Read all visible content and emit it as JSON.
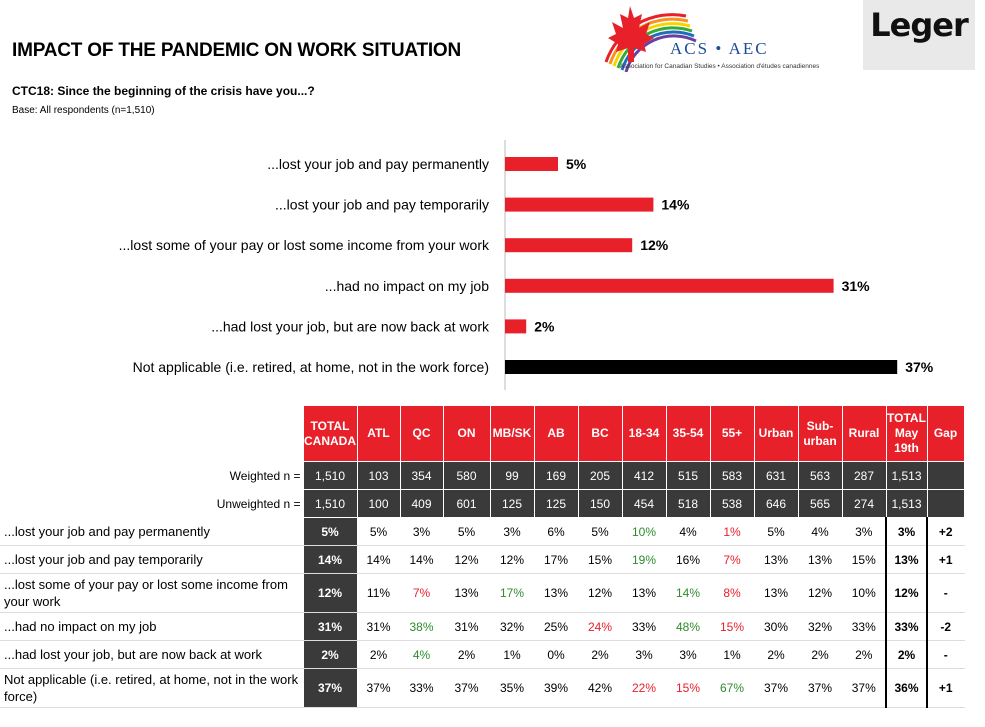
{
  "title": "IMPACT OF THE PANDEMIC ON WORK SITUATION",
  "question": "CTC18: Since the beginning of the crisis have you...?",
  "base": "Base: All respondents (n=1,510)",
  "logos": {
    "acs_text": "ACS • AEC",
    "acs_sub": "Association for Canadian Studies • Association d'études canadiennes",
    "leger": "Leger"
  },
  "colors": {
    "red": "#e8202a",
    "black": "#000000",
    "dark_cell": "#3a3a3a",
    "green": "#2e8b2e"
  },
  "chart_data": {
    "type": "bar",
    "orientation": "horizontal",
    "categories": [
      "...lost your job and pay permanently",
      "...lost your job and pay temporarily",
      "...lost some of your pay or lost some income from your work",
      "...had no impact on my job",
      "...had lost your job, but are now back at work",
      "Not applicable (i.e. retired, at home, not in the work force)"
    ],
    "values": [
      5,
      14,
      12,
      31,
      2,
      37
    ],
    "labels": [
      "5%",
      "14%",
      "12%",
      "31%",
      "2%",
      "37%"
    ],
    "bar_colors": [
      "#e8202a",
      "#e8202a",
      "#e8202a",
      "#e8202a",
      "#e8202a",
      "#000000"
    ],
    "xlim": [
      0,
      40
    ]
  },
  "table": {
    "headers": [
      "TOTAL CANADA",
      "ATL",
      "QC",
      "ON",
      "MB/SK",
      "AB",
      "BC",
      "18-34",
      "35-54",
      "55+",
      "Urban",
      "Sub-urban",
      "Rural",
      "TOTAL May 19th",
      "Gap"
    ],
    "weighted": {
      "label": "Weighted n =",
      "values": [
        "1,510",
        "103",
        "354",
        "580",
        "99",
        "169",
        "205",
        "412",
        "515",
        "583",
        "631",
        "563",
        "287",
        "1,513"
      ]
    },
    "unweighted": {
      "label": "Unweighted n =",
      "values": [
        "1,510",
        "100",
        "409",
        "601",
        "125",
        "125",
        "150",
        "454",
        "518",
        "538",
        "646",
        "565",
        "274",
        "1,513"
      ]
    },
    "rows": [
      {
        "label": "...lost your job and pay permanently",
        "values": [
          "5%",
          "5%",
          "3%",
          "5%",
          "3%",
          "6%",
          "5%",
          "10%",
          "4%",
          "1%",
          "5%",
          "4%",
          "3%",
          "3%",
          "+2"
        ],
        "colors": [
          "",
          "",
          "",
          "",
          "",
          "",
          "",
          "green",
          "",
          "red",
          "",
          "",
          "",
          "",
          ""
        ]
      },
      {
        "label": "...lost your job and pay temporarily",
        "values": [
          "14%",
          "14%",
          "14%",
          "12%",
          "12%",
          "17%",
          "15%",
          "19%",
          "16%",
          "7%",
          "13%",
          "13%",
          "15%",
          "13%",
          "+1"
        ],
        "colors": [
          "",
          "",
          "",
          "",
          "",
          "",
          "",
          "green",
          "",
          "red",
          "",
          "",
          "",
          "",
          ""
        ]
      },
      {
        "label": "...lost some of your pay or lost some income from your work",
        "values": [
          "12%",
          "11%",
          "7%",
          "13%",
          "17%",
          "13%",
          "12%",
          "13%",
          "14%",
          "8%",
          "13%",
          "12%",
          "10%",
          "12%",
          "-"
        ],
        "colors": [
          "",
          "",
          "red",
          "",
          "green",
          "",
          "",
          "",
          "green",
          "red",
          "",
          "",
          "",
          "",
          ""
        ]
      },
      {
        "label": "...had no impact on my job",
        "values": [
          "31%",
          "31%",
          "38%",
          "31%",
          "32%",
          "25%",
          "24%",
          "33%",
          "48%",
          "15%",
          "30%",
          "32%",
          "33%",
          "33%",
          "-2"
        ],
        "colors": [
          "",
          "",
          "green",
          "",
          "",
          "",
          "red",
          "",
          "green",
          "red",
          "",
          "",
          "",
          "",
          ""
        ]
      },
      {
        "label": "...had lost your job, but are now back at work",
        "values": [
          "2%",
          "2%",
          "4%",
          "2%",
          "1%",
          "0%",
          "2%",
          "3%",
          "3%",
          "1%",
          "2%",
          "2%",
          "2%",
          "2%",
          "-"
        ],
        "colors": [
          "",
          "",
          "green",
          "",
          "",
          "",
          "",
          "",
          "",
          "",
          "",
          "",
          "",
          "",
          ""
        ]
      },
      {
        "label": "Not applicable (i.e. retired, at home, not in the work force)",
        "values": [
          "37%",
          "37%",
          "33%",
          "37%",
          "35%",
          "39%",
          "42%",
          "22%",
          "15%",
          "67%",
          "37%",
          "37%",
          "37%",
          "36%",
          "+1"
        ],
        "colors": [
          "",
          "",
          "",
          "",
          "",
          "",
          "",
          "red",
          "red",
          "green",
          "",
          "",
          "",
          "",
          ""
        ]
      }
    ]
  }
}
